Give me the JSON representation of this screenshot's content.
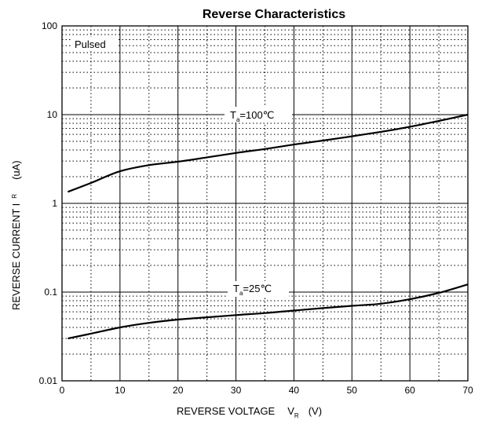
{
  "chart_data": {
    "type": "line",
    "title": "Reverse  Characteristics",
    "xlabel": {
      "main": "REVERSE VOLTAGE",
      "symbol": "V",
      "subscript": "R",
      "unit": "(V)"
    },
    "ylabel": {
      "main": "REVERSE CURRENT I",
      "subscript": "R",
      "unit": "(uA)"
    },
    "x_scale": "linear",
    "y_scale": "log",
    "xlim": [
      0,
      70
    ],
    "ylim": [
      0.01,
      100
    ],
    "x_ticks": [
      "0",
      "10",
      "20",
      "30",
      "40",
      "50",
      "60",
      "70"
    ],
    "y_ticks": [
      "0.01",
      "0.1",
      "1",
      "10",
      "100"
    ],
    "grid": true,
    "legend": "none",
    "note": "Pulsed",
    "series": [
      {
        "label_main": "T",
        "label_sub": "a",
        "label_rest": "=100℃",
        "x": [
          1,
          5,
          10,
          15,
          20,
          25,
          30,
          35,
          40,
          45,
          50,
          55,
          60,
          65,
          70
        ],
        "y": [
          1.35,
          1.7,
          2.3,
          2.7,
          2.95,
          3.3,
          3.7,
          4.1,
          4.6,
          5.1,
          5.7,
          6.4,
          7.3,
          8.5,
          10.0
        ]
      },
      {
        "label_main": "T",
        "label_sub": "a",
        "label_rest": "=25℃",
        "x": [
          1,
          5,
          10,
          15,
          20,
          25,
          30,
          35,
          40,
          45,
          50,
          55,
          60,
          65,
          70
        ],
        "y": [
          0.03,
          0.034,
          0.04,
          0.045,
          0.049,
          0.052,
          0.055,
          0.058,
          0.062,
          0.066,
          0.07,
          0.074,
          0.083,
          0.098,
          0.122
        ]
      }
    ]
  }
}
